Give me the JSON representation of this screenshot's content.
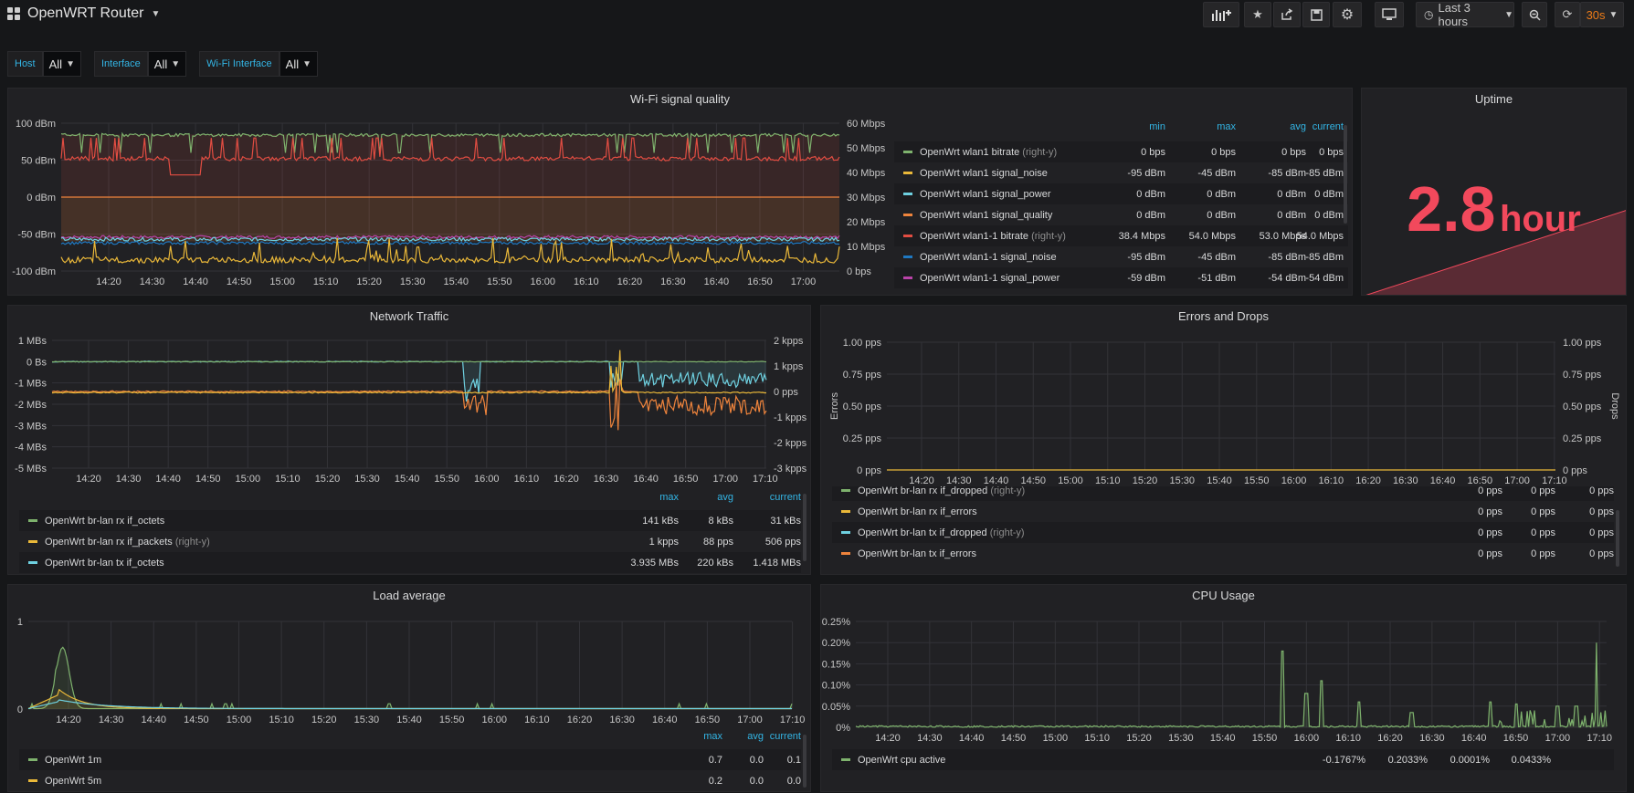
{
  "header": {
    "title": "OpenWRT Router",
    "time_range": "Last 3 hours",
    "refresh": "30s"
  },
  "variables": [
    {
      "label": "Host",
      "value": "All"
    },
    {
      "label": "Interface",
      "value": "All"
    },
    {
      "label": "Wi-Fi Interface",
      "value": "All"
    }
  ],
  "colors": {
    "green": "#7eb26d",
    "yellow": "#eab839",
    "cyan": "#6ed0e0",
    "orange": "#ef843c",
    "red": "#e24d42",
    "blue": "#1f78c1",
    "pink": "#ba43a9",
    "accent": "#33b5e5",
    "uptime": "#f2495c"
  },
  "time_ticks": [
    "14:20",
    "14:30",
    "14:40",
    "14:50",
    "15:00",
    "15:10",
    "15:20",
    "15:30",
    "15:40",
    "15:50",
    "16:00",
    "16:10",
    "16:20",
    "16:30",
    "16:40",
    "16:50",
    "17:00",
    "17:10"
  ],
  "wifi": {
    "title": "Wi-Fi signal quality",
    "y_left": [
      "100 dBm",
      "50 dBm",
      "0 dBm",
      "-50 dBm",
      "-100 dBm"
    ],
    "y_right": [
      "60 Mbps",
      "50 Mbps",
      "40 Mbps",
      "30 Mbps",
      "20 Mbps",
      "10 Mbps",
      "0 bps"
    ],
    "legend_headers": [
      "min",
      "max",
      "avg",
      "current"
    ],
    "legend": [
      {
        "name": "OpenWrt wlan1 bitrate",
        "suffix": "(right-y)",
        "color": "#7eb26d",
        "vals": [
          "0 bps",
          "0 bps",
          "0 bps",
          "0 bps"
        ]
      },
      {
        "name": "OpenWrt wlan1 signal_noise",
        "suffix": "",
        "color": "#eab839",
        "vals": [
          "-95 dBm",
          "-45 dBm",
          "-85 dBm",
          "-85 dBm"
        ]
      },
      {
        "name": "OpenWrt wlan1 signal_power",
        "suffix": "",
        "color": "#6ed0e0",
        "vals": [
          "0 dBm",
          "0 dBm",
          "0 dBm",
          "0 dBm"
        ]
      },
      {
        "name": "OpenWrt wlan1 signal_quality",
        "suffix": "",
        "color": "#ef843c",
        "vals": [
          "0 dBm",
          "0 dBm",
          "0 dBm",
          "0 dBm"
        ]
      },
      {
        "name": "OpenWrt wlan1-1 bitrate",
        "suffix": "(right-y)",
        "color": "#e24d42",
        "vals": [
          "38.4 Mbps",
          "54.0 Mbps",
          "53.0 Mbps",
          "54.0 Mbps"
        ]
      },
      {
        "name": "OpenWrt wlan1-1 signal_noise",
        "suffix": "",
        "color": "#1f78c1",
        "vals": [
          "-95 dBm",
          "-45 dBm",
          "-85 dBm",
          "-85 dBm"
        ]
      },
      {
        "name": "OpenWrt wlan1-1 signal_power",
        "suffix": "",
        "color": "#ba43a9",
        "vals": [
          "-59 dBm",
          "-51 dBm",
          "-54 dBm",
          "-54 dBm"
        ]
      }
    ]
  },
  "uptime": {
    "title": "Uptime",
    "value": "2.8",
    "unit": "hour"
  },
  "traffic": {
    "title": "Network Traffic",
    "y_left": [
      "1 MBs",
      "0 Bs",
      "-1 MBs",
      "-2 MBs",
      "-3 MBs",
      "-4 MBs",
      "-5 MBs"
    ],
    "y_right": [
      "2 kpps",
      "1 kpps",
      "0 pps",
      "-1 kpps",
      "-2 kpps",
      "-3 kpps"
    ],
    "legend_headers": [
      "max",
      "avg",
      "current"
    ],
    "legend": [
      {
        "name": "OpenWrt br-lan rx if_octets",
        "suffix": "",
        "color": "#7eb26d",
        "vals": [
          "141 kBs",
          "8 kBs",
          "31 kBs"
        ]
      },
      {
        "name": "OpenWrt br-lan rx if_packets",
        "suffix": "(right-y)",
        "color": "#eab839",
        "vals": [
          "1 kpps",
          "88 pps",
          "506 pps"
        ]
      },
      {
        "name": "OpenWrt br-lan tx if_octets",
        "suffix": "",
        "color": "#6ed0e0",
        "vals": [
          "3.935 MBs",
          "220 kBs",
          "1.418 MBs"
        ]
      }
    ]
  },
  "errors": {
    "title": "Errors and Drops",
    "y_left": [
      "1.00 pps",
      "0.75 pps",
      "0.50 pps",
      "0.25 pps",
      "0 pps"
    ],
    "y_right": [
      "1.00 pps",
      "0.75 pps",
      "0.50 pps",
      "0.25 pps",
      "0 pps"
    ],
    "ylabel_left": "Errors",
    "ylabel_right": "Drops",
    "legend": [
      {
        "name": "OpenWrt br-lan rx if_dropped",
        "suffix": "(right-y)",
        "color": "#7eb26d",
        "vals": [
          "0 pps",
          "0 pps",
          "0 pps"
        ]
      },
      {
        "name": "OpenWrt br-lan rx if_errors",
        "suffix": "",
        "color": "#eab839",
        "vals": [
          "0 pps",
          "0 pps",
          "0 pps"
        ]
      },
      {
        "name": "OpenWrt br-lan tx if_dropped",
        "suffix": "(right-y)",
        "color": "#6ed0e0",
        "vals": [
          "0 pps",
          "0 pps",
          "0 pps"
        ]
      },
      {
        "name": "OpenWrt br-lan tx if_errors",
        "suffix": "",
        "color": "#ef843c",
        "vals": [
          "0 pps",
          "0 pps",
          "0 pps"
        ]
      }
    ]
  },
  "load": {
    "title": "Load average",
    "y_left": [
      "1",
      "0"
    ],
    "legend_headers": [
      "max",
      "avg",
      "current"
    ],
    "legend": [
      {
        "name": "OpenWrt 1m",
        "suffix": "",
        "color": "#7eb26d",
        "vals": [
          "0.7",
          "0.0",
          "0.1"
        ]
      },
      {
        "name": "OpenWrt 5m",
        "suffix": "",
        "color": "#eab839",
        "vals": [
          "0.2",
          "0.0",
          "0.0"
        ]
      }
    ]
  },
  "cpu": {
    "title": "CPU Usage",
    "y_left": [
      "0.25%",
      "0.20%",
      "0.15%",
      "0.10%",
      "0.05%",
      "0%"
    ],
    "legend_headers": [
      "min",
      "max",
      "avg",
      "current"
    ],
    "legend": [
      {
        "name": "OpenWrt cpu active",
        "suffix": "",
        "color": "#7eb26d",
        "vals": [
          "-0.1767%",
          "0.2033%",
          "0.0001%",
          "0.0433%"
        ]
      }
    ]
  }
}
